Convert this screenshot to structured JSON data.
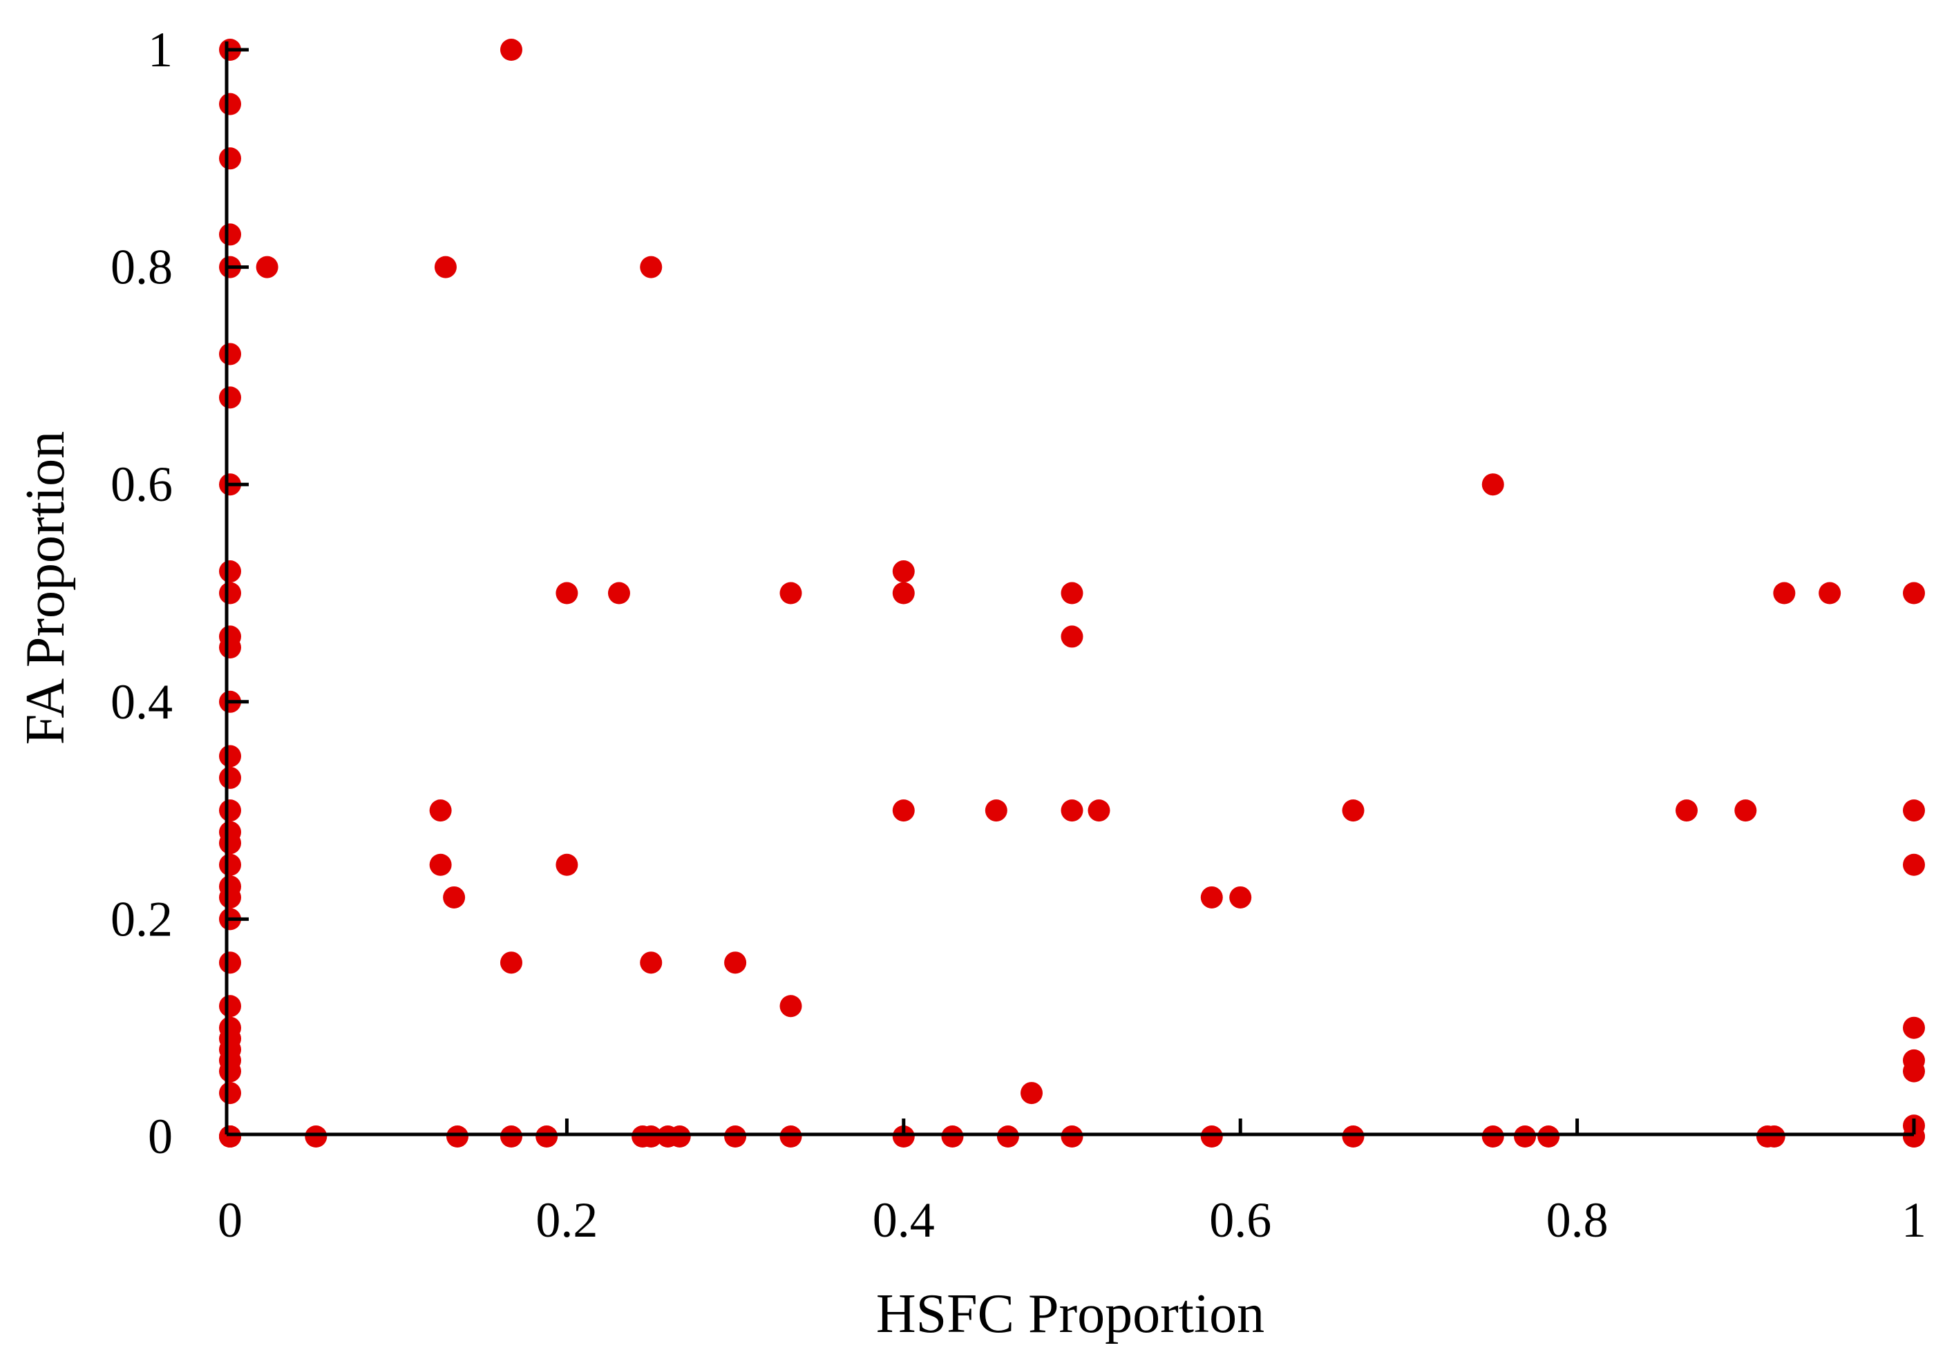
{
  "chart_data": {
    "type": "scatter",
    "xlabel": "HSFC Proportion",
    "ylabel": "FA Proportion",
    "xlim": [
      0,
      1
    ],
    "ylim": [
      0,
      1
    ],
    "xticks": [
      "0",
      "0.2",
      "0.4",
      "0.6",
      "0.8",
      "1"
    ],
    "yticks": [
      "0",
      "0.2",
      "0.4",
      "0.6",
      "0.8",
      "1"
    ],
    "grid": false,
    "legend": "none",
    "marker_color": "#e00000",
    "series": [
      {
        "x": [
          0,
          0,
          0,
          0,
          0,
          0,
          0,
          0,
          0,
          0,
          0,
          0,
          0,
          0,
          0,
          0,
          0,
          0,
          0,
          0,
          0,
          0,
          0,
          0,
          0,
          0,
          0,
          0,
          0,
          0,
          0,
          0,
          0,
          0,
          0,
          0.022,
          0.051,
          0.125,
          0.125,
          0.128,
          0.133,
          0.135,
          0.167,
          0.167,
          0.167,
          0.188,
          0.2,
          0.2,
          0.231,
          0.245,
          0.25,
          0.25,
          0.25,
          0.26,
          0.267,
          0.3,
          0.3,
          0.333,
          0.333,
          0.333,
          0.4,
          0.4,
          0.4,
          0.4,
          0.429,
          0.455,
          0.462,
          0.476,
          0.5,
          0.5,
          0.5,
          0.5,
          0.516,
          0.583,
          0.583,
          0.6,
          0.667,
          0.667,
          0.75,
          0.75,
          0.769,
          0.783,
          0.865,
          0.9,
          0.913,
          0.917,
          0.923,
          0.95,
          1,
          1,
          1,
          1,
          1,
          1,
          1,
          1,
          1
        ],
        "y": [
          1,
          0.95,
          0.9,
          0.83,
          0.8,
          0.72,
          0.68,
          0.6,
          0.52,
          0.5,
          0.46,
          0.45,
          0.4,
          0.35,
          0.33,
          0.3,
          0.28,
          0.27,
          0.25,
          0.23,
          0.22,
          0.2,
          0.16,
          0.12,
          0.1,
          0.09,
          0.08,
          0.07,
          0.06,
          0.04,
          0,
          0,
          0,
          0,
          0,
          0.8,
          0,
          0.3,
          0.25,
          0.8,
          0.22,
          0,
          1,
          0.16,
          0,
          0,
          0.5,
          0.25,
          0.5,
          0,
          0.8,
          0.16,
          0,
          0,
          0,
          0.16,
          0,
          0.5,
          0.12,
          0,
          0.52,
          0.5,
          0.3,
          0,
          0,
          0.3,
          0,
          0.04,
          0.5,
          0.46,
          0.3,
          0,
          0.3,
          0.22,
          0,
          0.22,
          0.3,
          0,
          0.6,
          0,
          0,
          0,
          0.3,
          0.3,
          0,
          0,
          0.5,
          0.5,
          0.5,
          0.3,
          0.25,
          0.1,
          0.07,
          0.06,
          0.01,
          0,
          0
        ]
      }
    ]
  }
}
